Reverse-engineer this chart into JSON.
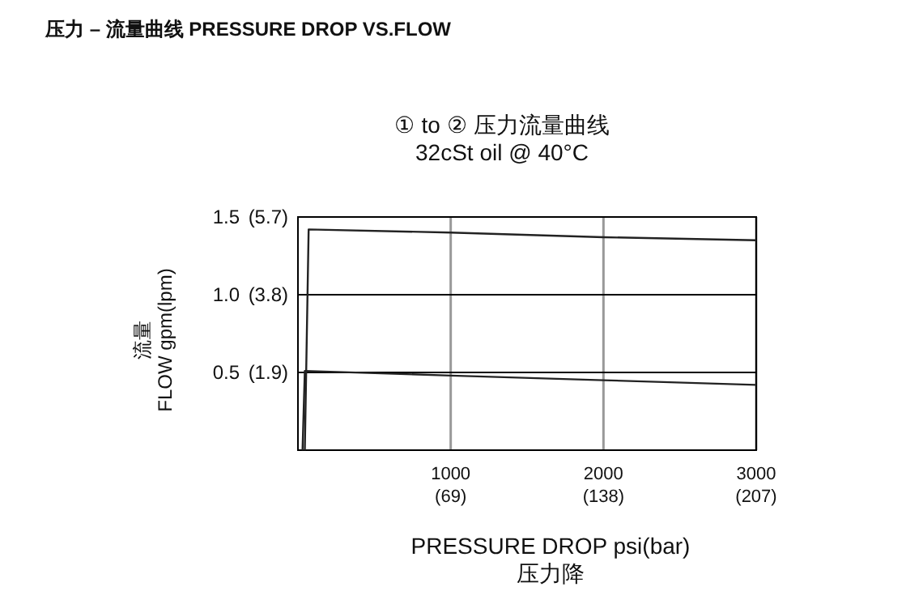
{
  "chart_data": {
    "type": "line",
    "title": "压力 – 流量曲线 PRESSURE DROP VS.FLOW",
    "subtitle": "① to ② 压力流量曲线\n32cSt oil @ 40°C",
    "xlabel": "PRESSURE DROP psi(bar)\n压力降",
    "ylabel": "流量\nFLOW gpm(lpm)",
    "xlim": [
      0,
      3000
    ],
    "ylim": [
      0,
      1.5
    ],
    "xticks": [
      1000,
      2000,
      3000
    ],
    "x2lim": [
      0,
      207
    ],
    "x2ticks": [
      {
        "value": 69,
        "label": "(69)"
      },
      {
        "value": 138,
        "label": "(138)"
      },
      {
        "value": 207,
        "label": "(207)"
      }
    ],
    "yticks": [
      0.5,
      {
        "value": 1.0,
        "label": "1.0"
      },
      1.5
    ],
    "y2lim": [
      0,
      5.7
    ],
    "y2ticks": [
      {
        "value": 1.9,
        "label": "(1.9)"
      },
      {
        "value": 3.8,
        "label": "(3.8)"
      },
      {
        "value": 5.7,
        "label": "(5.7)"
      }
    ],
    "grid": true,
    "series": [
      {
        "color": "#222222",
        "x": [
          45,
          70,
          1000,
          2000,
          3000
        ],
        "values": [
          0,
          1.42,
          1.4,
          1.37,
          1.35
        ]
      },
      {
        "color": "#222222",
        "x": [
          30,
          45,
          1000,
          2000,
          3000
        ],
        "values": [
          0,
          0.51,
          0.48,
          0.45,
          0.42
        ]
      }
    ]
  }
}
